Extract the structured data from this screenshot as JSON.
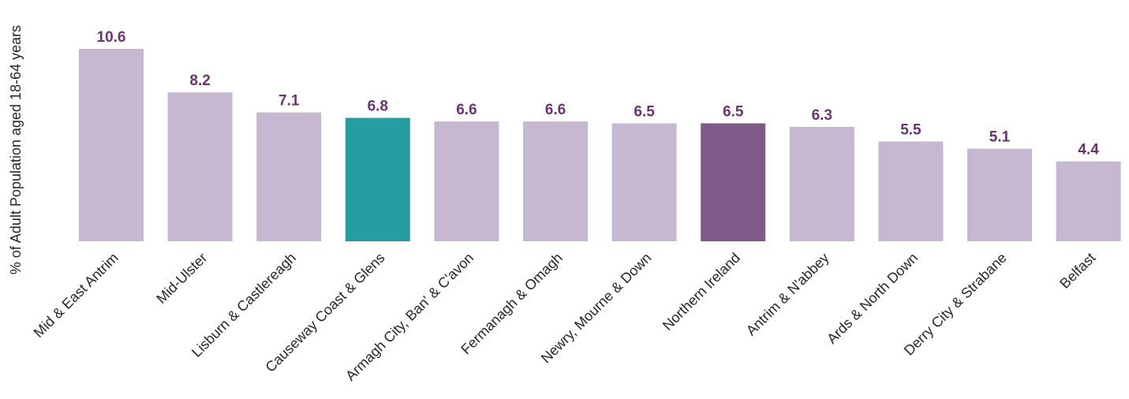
{
  "chart_data": {
    "type": "bar",
    "title": "",
    "xlabel": "",
    "ylabel": "% of Adult Population aged 18-64 years",
    "categories": [
      "Mid & East Antrim",
      "Mid-Ulster",
      "Lisburn & Castlereagh",
      "Causeway Coast & Glens",
      "Armagh City, Ban' & C'avon",
      "Fermanagh & Omagh",
      "Newry, Mourne & Down",
      "Northern Ireland",
      "Antrim & N'abbey",
      "Ards & North Down",
      "Derry City & Strabane",
      "Belfast"
    ],
    "values": [
      10.6,
      8.2,
      7.1,
      6.8,
      6.6,
      6.6,
      6.5,
      6.5,
      6.3,
      5.5,
      5.1,
      4.4
    ],
    "value_labels": [
      "10.6",
      "8.2",
      "7.1",
      "6.8",
      "6.6",
      "6.6",
      "6.5",
      "6.5",
      "6.3",
      "5.5",
      "5.1",
      "4.4"
    ],
    "ylim": [
      0,
      10.6
    ],
    "grid": false,
    "legend": "none",
    "colors": {
      "default_bar": "#c5b8d0",
      "highlight_bar": "#269da0",
      "total_bar": "#7f5a89",
      "label_text": "#6a3474",
      "tick_text": "#262626"
    },
    "highlight_category": "Causeway Coast & Glens",
    "total_category": "Northern Ireland"
  }
}
